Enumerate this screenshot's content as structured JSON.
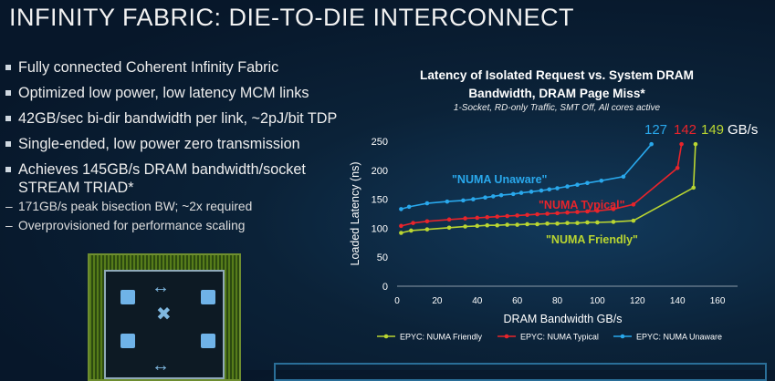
{
  "slide": {
    "title": "INFINITY FABRIC: DIE-TO-DIE INTERCONNECT",
    "bullets": [
      "Fully connected Coherent Infinity Fabric",
      "Optimized low power, low latency MCM links",
      "42GB/sec bi-dir bandwidth per link, ~2pJ/bit TDP",
      "Single-ended, low power zero transmission",
      "Achieves 145GB/s DRAM bandwidth/socket",
      "STREAM TRIAD*"
    ],
    "subbullets": [
      "171GB/s peak bisection BW; ~2x required",
      "Overprovisioned for performance scaling"
    ],
    "dash": "–"
  },
  "bandwidth_labels": {
    "unaware": "127",
    "typical": "142",
    "friendly": "149",
    "unit": "GB/s",
    "colors": {
      "unaware": "#29a8ec",
      "typical": "#e8242b",
      "friendly": "#b9d531"
    }
  },
  "chart_data": {
    "type": "line",
    "title": "Latency of Isolated Request vs. System DRAM Bandwidth, DRAM Page Miss*",
    "subtitle": "1-Socket, RD-only Traffic, SMT Off, All cores active",
    "xlabel": "DRAM Bandwidth GB/s",
    "ylabel": "Loaded Latency (ns)",
    "xlim": [
      0,
      170
    ],
    "ylim": [
      0,
      250
    ],
    "xticks": [
      0,
      20,
      40,
      60,
      80,
      100,
      120,
      140,
      160
    ],
    "yticks": [
      0,
      50,
      100,
      150,
      200,
      250
    ],
    "grid": false,
    "legend_position": "bottom",
    "annotations": [
      {
        "text": "\"NUMA Unaware\"",
        "series": "unaware",
        "color": "#29a8ec"
      },
      {
        "text": "\"NUMA Typical\"",
        "series": "typical",
        "color": "#e8242b"
      },
      {
        "text": "\"NUMA Friendly\"",
        "series": "friendly",
        "color": "#b9d531"
      }
    ],
    "series": [
      {
        "name": "EPYC: NUMA Friendly",
        "key": "friendly",
        "color": "#b9d531",
        "x": [
          2,
          7,
          15,
          26,
          34,
          40,
          45,
          50,
          55,
          60,
          65,
          70,
          75,
          80,
          85,
          90,
          95,
          100,
          108,
          118,
          148,
          149
        ],
        "y": [
          92,
          96,
          98,
          101,
          103,
          104,
          105,
          105,
          106,
          106,
          107,
          107,
          108,
          108,
          109,
          109,
          110,
          110,
          111,
          113,
          170,
          245
        ]
      },
      {
        "name": "EPYC: NUMA Typical",
        "key": "typical",
        "color": "#e8242b",
        "x": [
          2,
          8,
          15,
          26,
          34,
          40,
          45,
          50,
          55,
          60,
          65,
          70,
          75,
          80,
          85,
          90,
          95,
          100,
          108,
          118,
          140,
          142
        ],
        "y": [
          104,
          109,
          112,
          115,
          117,
          118,
          119,
          120,
          121,
          122,
          123,
          124,
          125,
          126,
          127,
          128,
          129,
          130,
          133,
          141,
          204,
          245
        ]
      },
      {
        "name": "EPYC: NUMA Unaware",
        "key": "unaware",
        "color": "#29a8ec",
        "x": [
          2,
          6,
          15,
          25,
          33,
          38,
          44,
          48,
          52,
          58,
          62,
          67,
          72,
          76,
          80,
          85,
          90,
          95,
          102,
          113,
          127
        ],
        "y": [
          133,
          137,
          143,
          146,
          148,
          150,
          153,
          155,
          157,
          159,
          161,
          163,
          165,
          167,
          169,
          172,
          175,
          178,
          182,
          189,
          245
        ]
      }
    ]
  }
}
